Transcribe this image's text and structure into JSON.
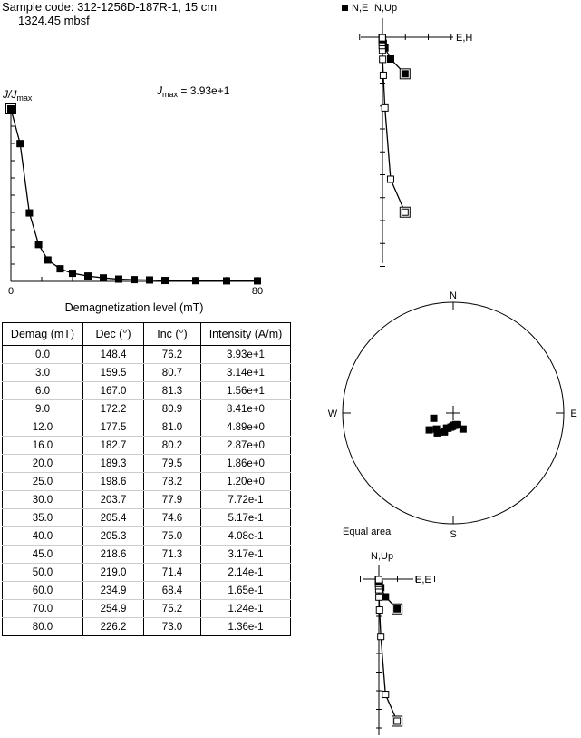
{
  "header": {
    "sample_line": "Sample code: 312-1256D-187R-1, 15 cm",
    "depth_line": "1324.45 mbsf"
  },
  "colors": {
    "ink": "#000000",
    "row_rule": "#cccccc"
  },
  "demag_plot": {
    "ylabel_main": "J/J",
    "ylabel_sub": "max",
    "jmax_main": "J",
    "jmax_sub": "max",
    "jmax_value": " = 3.93e+1",
    "xlabel": "Demagnetization level (mT)",
    "xtick_labels": [
      "0",
      "80"
    ]
  },
  "zijder_top": {
    "legend": "N,E",
    "up_label": "N,Up",
    "horiz_label": "E,H"
  },
  "stereonet": {
    "n": "N",
    "s": "S",
    "e": "E",
    "w": "W",
    "caption": "Equal area"
  },
  "zijder_bottom": {
    "up_label": "N,Up",
    "horiz_label": "E,E"
  },
  "table": {
    "headers": [
      "Demag (mT)",
      "Dec (°)",
      "Inc (°)",
      "Intensity (A/m)"
    ],
    "rows": [
      [
        "0.0",
        "148.4",
        "76.2",
        "3.93e+1"
      ],
      [
        "3.0",
        "159.5",
        "80.7",
        "3.14e+1"
      ],
      [
        "6.0",
        "167.0",
        "81.3",
        "1.56e+1"
      ],
      [
        "9.0",
        "172.2",
        "80.9",
        "8.41e+0"
      ],
      [
        "12.0",
        "177.5",
        "81.0",
        "4.89e+0"
      ],
      [
        "16.0",
        "182.7",
        "80.2",
        "2.87e+0"
      ],
      [
        "20.0",
        "189.3",
        "79.5",
        "1.86e+0"
      ],
      [
        "25.0",
        "198.6",
        "78.2",
        "1.20e+0"
      ],
      [
        "30.0",
        "203.7",
        "77.9",
        "7.72e-1"
      ],
      [
        "35.0",
        "205.4",
        "74.6",
        "5.17e-1"
      ],
      [
        "40.0",
        "205.3",
        "75.0",
        "4.08e-1"
      ],
      [
        "45.0",
        "218.6",
        "71.3",
        "3.17e-1"
      ],
      [
        "50.0",
        "219.0",
        "71.4",
        "2.14e-1"
      ],
      [
        "60.0",
        "234.9",
        "68.4",
        "1.65e-1"
      ],
      [
        "70.0",
        "254.9",
        "75.2",
        "1.24e-1"
      ],
      [
        "80.0",
        "226.2",
        "73.0",
        "1.36e-1"
      ]
    ]
  },
  "chart_data": {
    "type": "line",
    "x": [
      0,
      3,
      6,
      9,
      12,
      16,
      20,
      25,
      30,
      35,
      40,
      45,
      50,
      60,
      70,
      80
    ],
    "y": [
      1.0,
      0.799,
      0.397,
      0.214,
      0.124,
      0.073,
      0.047,
      0.031,
      0.02,
      0.013,
      0.01,
      0.008,
      0.005,
      0.004,
      0.003,
      0.003
    ],
    "xlim": [
      0,
      80
    ],
    "ylim": [
      0,
      1
    ]
  }
}
